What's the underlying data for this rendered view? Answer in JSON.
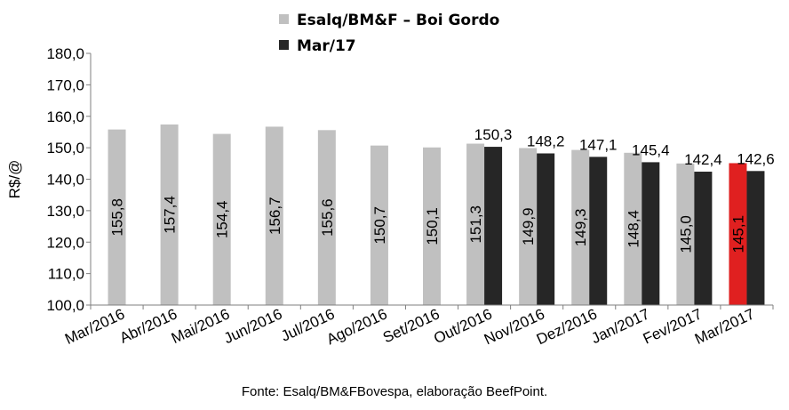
{
  "chart_data": {
    "type": "bar",
    "categories": [
      "Mar/2016",
      "Abr/2016",
      "Mai/2016",
      "Jun/2016",
      "Jul/2016",
      "Ago/2016",
      "Set/2016",
      "Out/2016",
      "Nov/2016",
      "Dez/2016",
      "Jan/2017",
      "Fev/2017",
      "Mar/2017"
    ],
    "series": [
      {
        "name": "Esalq/BM&F – Boi Gordo",
        "color": "#c0c0c0",
        "values": [
          155.8,
          157.4,
          154.4,
          156.7,
          155.6,
          150.7,
          150.1,
          151.3,
          149.9,
          149.3,
          148.4,
          145.0,
          145.1
        ],
        "labels": [
          "155,8",
          "157,4",
          "154,4",
          "156,7",
          "155,6",
          "150,7",
          "150,1",
          "151,3",
          "149,9",
          "149,3",
          "148,4",
          "145,0",
          "145,1"
        ],
        "highlight": {
          "index": 12,
          "color": "#e02020"
        }
      },
      {
        "name": "Mar/17",
        "color": "#262626",
        "values": [
          null,
          null,
          null,
          null,
          null,
          null,
          null,
          150.3,
          148.2,
          147.1,
          145.4,
          142.4,
          142.6
        ],
        "labels": [
          null,
          null,
          null,
          null,
          null,
          null,
          null,
          "150,3",
          "148,2",
          "147,1",
          "145,4",
          "142,4",
          "142,6"
        ]
      }
    ],
    "ylabel": "R$/@",
    "ylim": [
      100,
      180
    ],
    "yticks": [
      "100,0",
      "110,0",
      "120,0",
      "130,0",
      "140,0",
      "150,0",
      "160,0",
      "170,0",
      "180,0"
    ],
    "grid": false,
    "legend": "top-center"
  },
  "source_note": "Fonte: Esalq/BM&FBovespa, elaboração BeefPoint."
}
